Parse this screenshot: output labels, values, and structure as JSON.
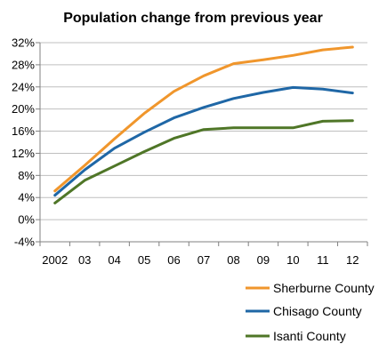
{
  "chart_data": {
    "type": "line",
    "title": "Population change from previous year",
    "xlabel": "",
    "ylabel": "",
    "categories": [
      "2002",
      "03",
      "04",
      "05",
      "06",
      "07",
      "08",
      "09",
      "10",
      "11",
      "12"
    ],
    "y_ticks": [
      "-4%",
      "0%",
      "4%",
      "8%",
      "12%",
      "16%",
      "20%",
      "24%",
      "28%",
      "32%"
    ],
    "ylim": [
      -4,
      32
    ],
    "y_unit": "%",
    "grid": "horizontal",
    "legend_position": "bottom-right",
    "series": [
      {
        "name": "Sherburne County",
        "color": "#f0962c",
        "values": [
          5.2,
          9.8,
          14.6,
          19.2,
          23.2,
          26.0,
          28.2,
          28.9,
          29.7,
          30.7,
          31.2
        ]
      },
      {
        "name": "Chisago County",
        "color": "#1f67a6",
        "values": [
          4.4,
          9.0,
          12.9,
          15.8,
          18.4,
          20.3,
          21.9,
          23.0,
          23.9,
          23.6,
          22.9
        ]
      },
      {
        "name": "Isanti County",
        "color": "#4f7627",
        "values": [
          3.0,
          7.1,
          9.7,
          12.3,
          14.7,
          16.3,
          16.6,
          16.6,
          16.6,
          17.8,
          17.9
        ]
      }
    ]
  }
}
